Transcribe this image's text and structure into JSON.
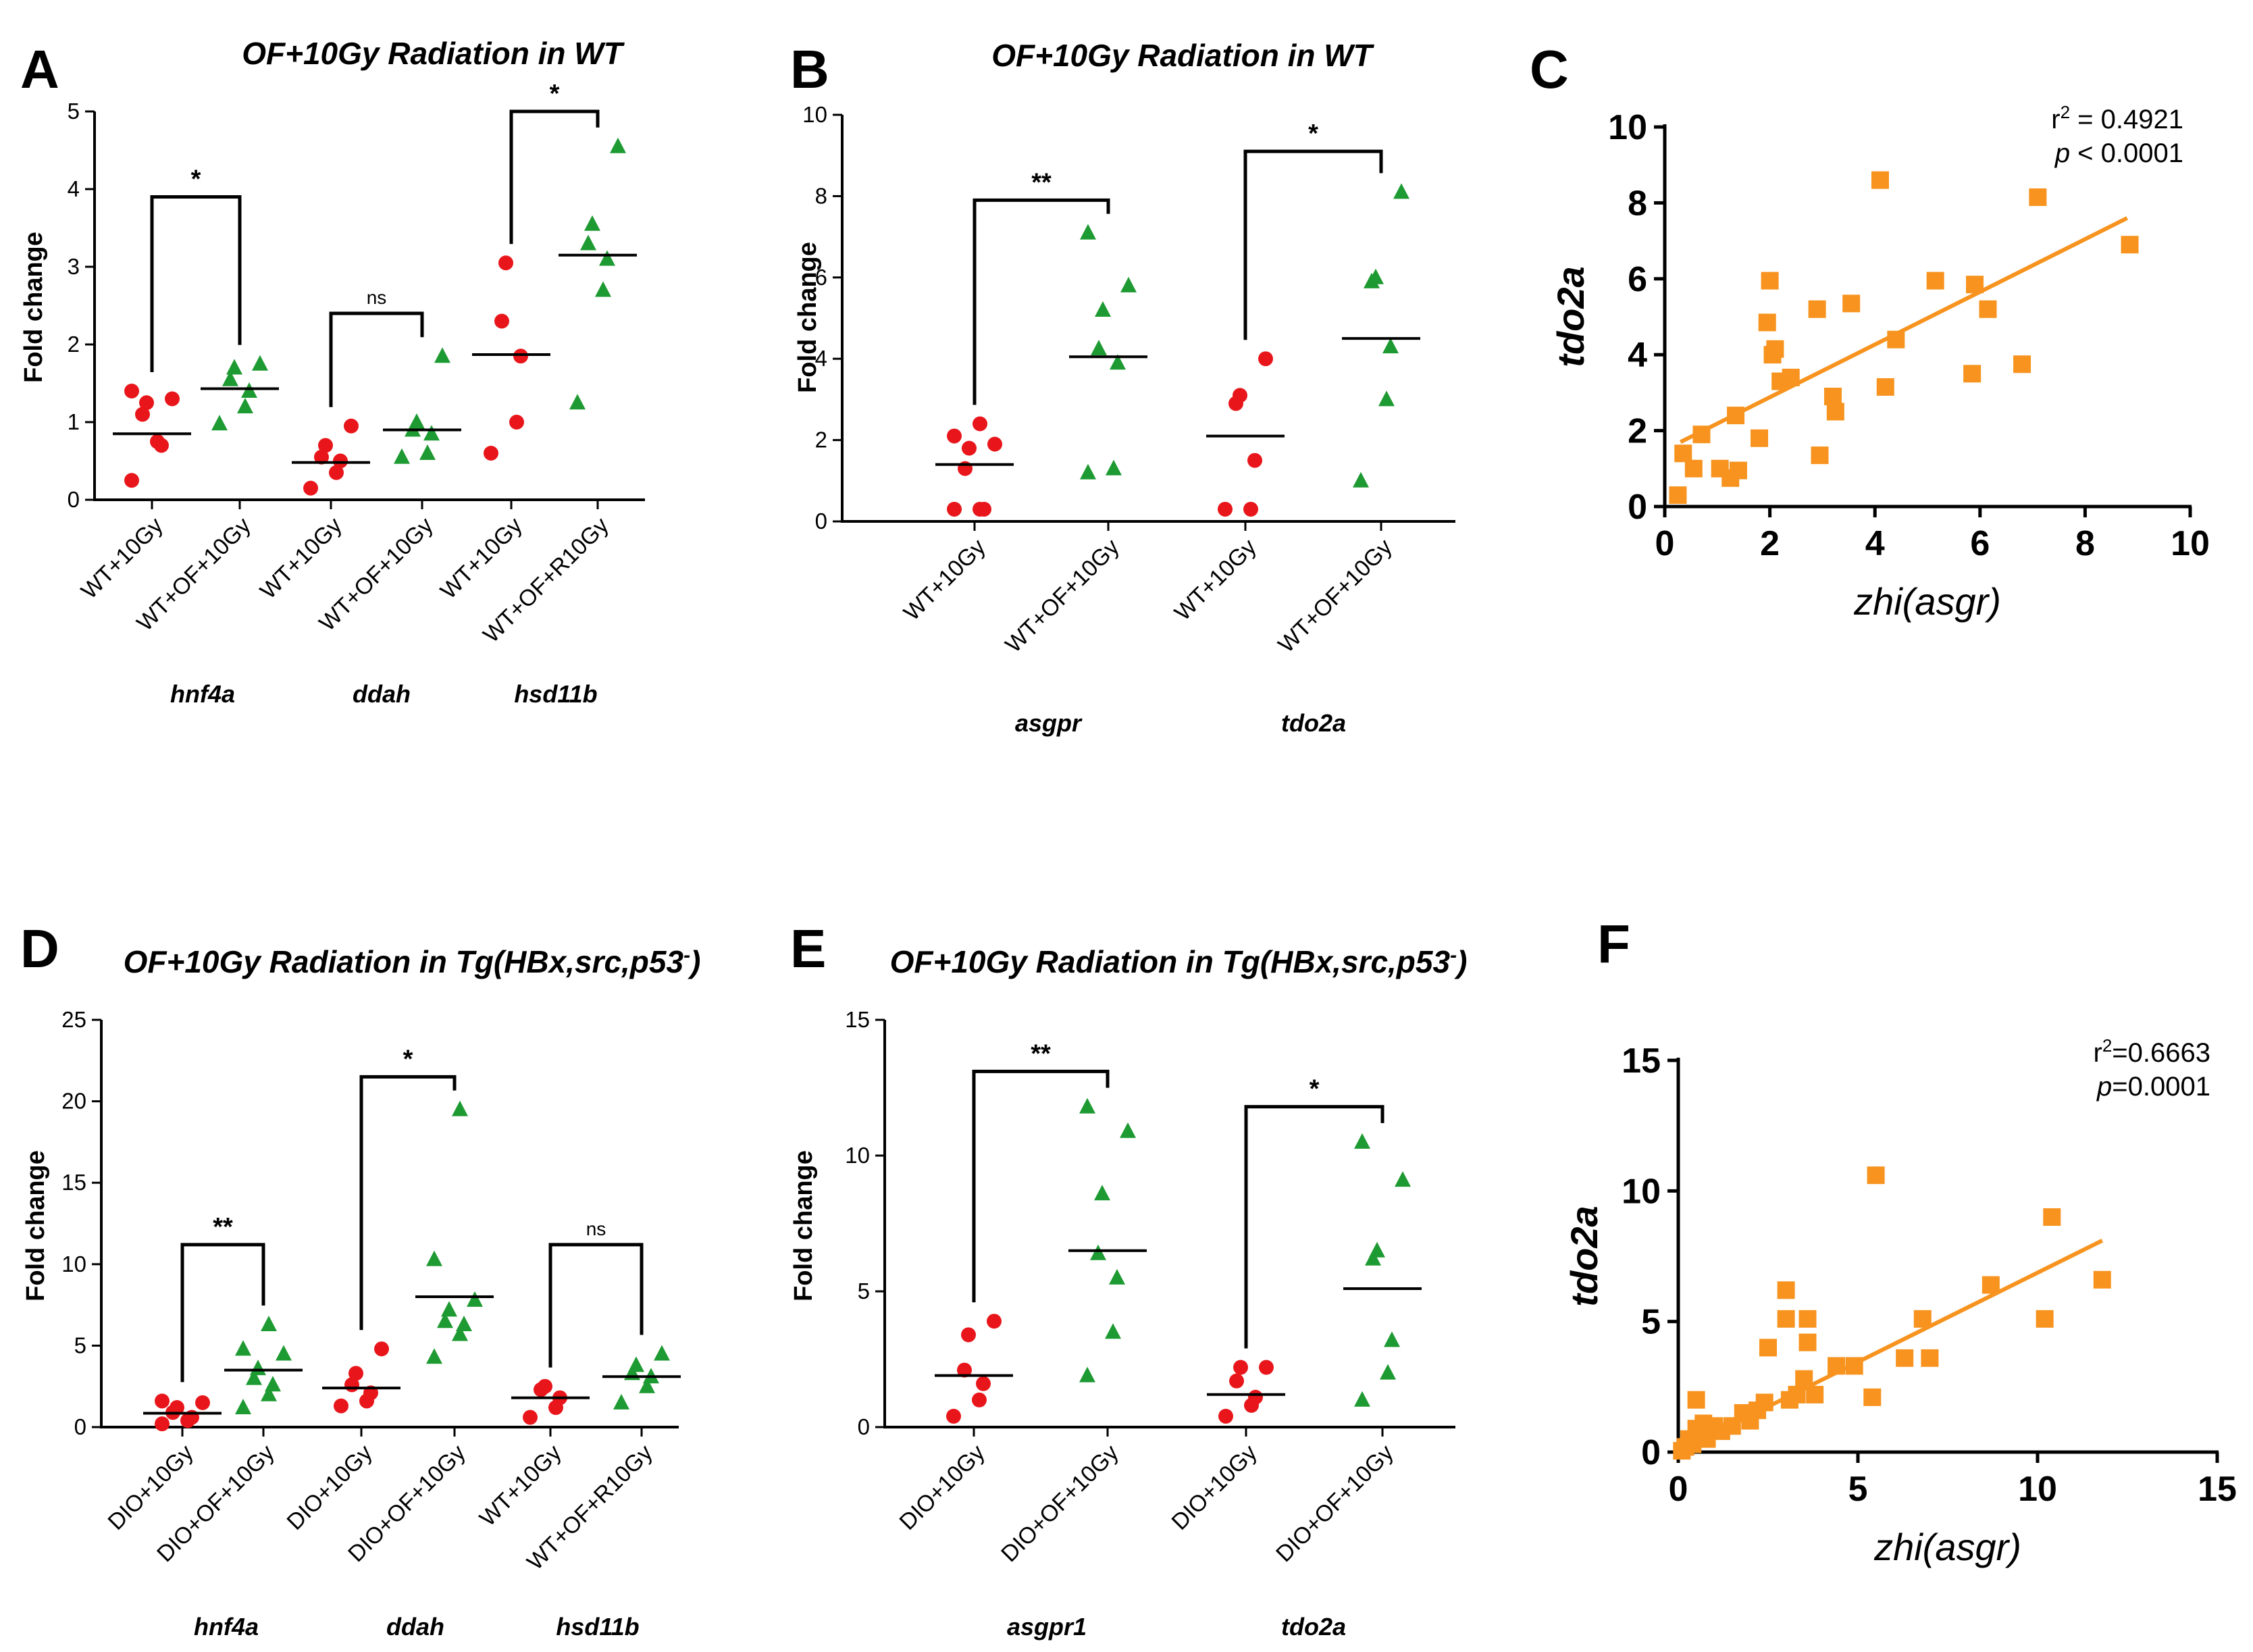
{
  "colors": {
    "wt": "#e8161b",
    "of": "#1e9a32",
    "scatter": "#f7931e",
    "fit": "#f7931e",
    "axis": "#000000"
  },
  "chart_data": [
    {
      "panel": "A",
      "type": "scatter",
      "title": "OF+10Gy Radiation in WT",
      "ylabel": "Fold change",
      "ylim": [
        0,
        5
      ],
      "yticks": [
        0,
        1,
        2,
        3,
        4,
        5
      ],
      "groups": [
        {
          "label": "WT+10Gy",
          "gene": "hnf4a",
          "marker": "circle",
          "color": "#e8161b",
          "mean": 0.85,
          "values": [
            0.25,
            0.75,
            0.7,
            1.1,
            1.25,
            1.3,
            1.4
          ]
        },
        {
          "label": "WT+OF+10Gy",
          "marker": "triangle",
          "color": "#1e9a32",
          "mean": 1.43,
          "values": [
            0.98,
            1.2,
            1.4,
            1.55,
            1.7,
            1.75
          ]
        },
        {
          "label": "WT+10Gy",
          "gene": "ddah",
          "marker": "circle",
          "color": "#e8161b",
          "mean": 0.48,
          "values": [
            0.15,
            0.35,
            0.5,
            0.55,
            0.7,
            0.95
          ]
        },
        {
          "label": "WT+OF+10Gy",
          "marker": "triangle",
          "color": "#1e9a32",
          "mean": 0.9,
          "values": [
            0.55,
            0.6,
            0.85,
            0.9,
            1.0,
            1.85
          ]
        },
        {
          "label": "WT+10Gy",
          "gene": "hsd11b",
          "marker": "circle",
          "color": "#e8161b",
          "mean": 1.87,
          "values": [
            0.6,
            1.0,
            1.85,
            2.3,
            3.05
          ]
        },
        {
          "label": "WT+OF+R10Gy",
          "marker": "triangle",
          "color": "#1e9a32",
          "mean": 3.15,
          "values": [
            1.25,
            2.7,
            3.1,
            3.3,
            3.55,
            4.55
          ]
        }
      ],
      "sig": [
        {
          "from": 0,
          "to": 1,
          "label": "*",
          "height": 3.9
        },
        {
          "from": 2,
          "to": 3,
          "label": "ns",
          "height": 2.4
        },
        {
          "from": 4,
          "to": 5,
          "label": "*",
          "height": 5.0
        }
      ]
    },
    {
      "panel": "B",
      "type": "scatter",
      "title": "OF+10Gy Radiation in WT",
      "ylabel": "Fold change",
      "ylim": [
        0,
        10
      ],
      "yticks": [
        0,
        2,
        4,
        6,
        8,
        10
      ],
      "groups": [
        {
          "label": "WT+10Gy",
          "gene": "asgpr",
          "marker": "circle",
          "color": "#e8161b",
          "mean": 1.4,
          "values": [
            0.3,
            0.3,
            0.3,
            1.3,
            1.8,
            1.9,
            2.1,
            2.4
          ]
        },
        {
          "label": "WT+OF+10Gy",
          "marker": "triangle",
          "color": "#1e9a32",
          "mean": 4.05,
          "values": [
            1.2,
            1.3,
            3.9,
            4.25,
            5.2,
            5.8,
            7.1
          ]
        },
        {
          "label": "WT+10Gy",
          "gene": "tdo2a",
          "marker": "circle",
          "color": "#e8161b",
          "mean": 2.1,
          "values": [
            0.3,
            0.3,
            1.5,
            2.9,
            3.1,
            4.0
          ]
        },
        {
          "label": "WT+OF+10Gy",
          "marker": "triangle",
          "color": "#1e9a32",
          "mean": 4.5,
          "values": [
            1.0,
            3.0,
            4.3,
            5.9,
            6.0,
            8.1
          ]
        }
      ],
      "sig": [
        {
          "from": 0,
          "to": 1,
          "label": "**",
          "height": 7.9
        },
        {
          "from": 2,
          "to": 3,
          "label": "*",
          "height": 9.1
        }
      ]
    },
    {
      "panel": "C",
      "type": "scatter",
      "xlabel": "zhi(asgr)",
      "ylabel": "tdo2a",
      "xlim": [
        0,
        10
      ],
      "ylim": [
        0,
        10
      ],
      "xticks": [
        0,
        2,
        4,
        6,
        8,
        10
      ],
      "yticks": [
        0,
        2,
        4,
        6,
        8,
        10
      ],
      "stats": {
        "r2": "r² = 0.4921",
        "r2_label": "r",
        "r2_value": " = 0.4921",
        "p_label": "p",
        "p_value": " < 0.0001"
      },
      "fit": {
        "x": [
          0.3,
          8.8
        ],
        "y": [
          1.7,
          7.6
        ]
      },
      "points": [
        [
          0.25,
          0.3
        ],
        [
          0.35,
          1.4
        ],
        [
          0.55,
          1.0
        ],
        [
          0.7,
          1.9
        ],
        [
          1.05,
          1.0
        ],
        [
          1.25,
          0.75
        ],
        [
          1.4,
          0.95
        ],
        [
          1.35,
          2.4
        ],
        [
          1.8,
          1.8
        ],
        [
          1.95,
          4.85
        ],
        [
          2.0,
          5.95
        ],
        [
          2.05,
          4.0
        ],
        [
          2.1,
          4.15
        ],
        [
          2.2,
          3.3
        ],
        [
          2.4,
          3.4
        ],
        [
          2.9,
          5.2
        ],
        [
          2.95,
          1.35
        ],
        [
          3.2,
          2.9
        ],
        [
          3.25,
          2.5
        ],
        [
          3.55,
          5.35
        ],
        [
          4.1,
          8.6
        ],
        [
          4.2,
          3.15
        ],
        [
          4.4,
          4.4
        ],
        [
          5.15,
          5.95
        ],
        [
          5.85,
          3.5
        ],
        [
          5.9,
          5.85
        ],
        [
          6.15,
          5.2
        ],
        [
          6.8,
          3.75
        ],
        [
          7.1,
          8.15
        ],
        [
          8.85,
          6.9
        ]
      ]
    },
    {
      "panel": "D",
      "type": "scatter",
      "title": "OF+10Gy Radiation in Tg(HBx,src,p53",
      "title_sup": "-",
      "title_end": ")",
      "ylabel": "Fold change",
      "ylim": [
        0,
        25
      ],
      "yticks": [
        0,
        5,
        10,
        15,
        20,
        25
      ],
      "groups": [
        {
          "label": "DIO+10Gy",
          "gene": "hnf4a",
          "marker": "circle",
          "color": "#e8161b",
          "mean": 0.85,
          "values": [
            0.2,
            0.4,
            0.6,
            0.9,
            1.2,
            1.5,
            1.6
          ]
        },
        {
          "label": "DIO+OF+10Gy",
          "marker": "triangle",
          "color": "#1e9a32",
          "mean": 3.5,
          "values": [
            1.2,
            2.0,
            2.6,
            3.0,
            3.6,
            4.5,
            4.8,
            6.3
          ]
        },
        {
          "label": "DIO+10Gy",
          "gene": "ddah",
          "marker": "circle",
          "color": "#e8161b",
          "mean": 2.4,
          "values": [
            1.3,
            1.6,
            2.1,
            2.6,
            3.3,
            4.8
          ]
        },
        {
          "label": "DIO+OF+10Gy",
          "marker": "triangle",
          "color": "#1e9a32",
          "mean": 8.0,
          "values": [
            4.3,
            5.7,
            6.3,
            6.5,
            7.2,
            7.8,
            10.3,
            19.5
          ]
        },
        {
          "label": "WT+10Gy",
          "gene": "hsd11b",
          "marker": "circle",
          "color": "#e8161b",
          "mean": 1.8,
          "values": [
            0.6,
            1.2,
            1.8,
            2.3,
            2.5
          ]
        },
        {
          "label": "WT+OF+R10Gy",
          "marker": "triangle",
          "color": "#1e9a32",
          "mean": 3.1,
          "values": [
            1.5,
            2.5,
            3.1,
            3.3,
            3.8,
            4.5
          ]
        }
      ],
      "sig": [
        {
          "from": 0,
          "to": 1,
          "label": "**",
          "height": 11.2
        },
        {
          "from": 2,
          "to": 3,
          "label": "*",
          "height": 21.5
        },
        {
          "from": 4,
          "to": 5,
          "label": "ns",
          "height": 11.2
        }
      ]
    },
    {
      "panel": "E",
      "type": "scatter",
      "title": "OF+10Gy Radiation in Tg(HBx,src,p53",
      "title_sup": "-",
      "title_end": ")",
      "ylabel": "Fold change",
      "ylim": [
        0,
        15
      ],
      "yticks": [
        0,
        5,
        10,
        15
      ],
      "groups": [
        {
          "label": "DIO+10Gy",
          "gene": "asgpr1",
          "marker": "circle",
          "color": "#e8161b",
          "mean": 1.9,
          "values": [
            0.4,
            1.0,
            1.6,
            2.1,
            3.4,
            3.9
          ]
        },
        {
          "label": "DIO+OF+10Gy",
          "marker": "triangle",
          "color": "#1e9a32",
          "mean": 6.5,
          "values": [
            1.9,
            3.5,
            5.5,
            6.4,
            8.6,
            10.9,
            11.8
          ]
        },
        {
          "label": "DIO+10Gy",
          "gene": "tdo2a",
          "marker": "circle",
          "color": "#e8161b",
          "mean": 1.2,
          "values": [
            0.4,
            0.8,
            1.1,
            1.7,
            2.2,
            2.2
          ]
        },
        {
          "label": "DIO+OF+10Gy",
          "marker": "triangle",
          "color": "#1e9a32",
          "mean": 5.1,
          "values": [
            1.0,
            2.0,
            3.2,
            6.2,
            6.5,
            9.1,
            10.5
          ]
        }
      ],
      "sig": [
        {
          "from": 0,
          "to": 1,
          "label": "**",
          "height": 13.1
        },
        {
          "from": 2,
          "to": 3,
          "label": "*",
          "height": 11.8
        }
      ]
    },
    {
      "panel": "F",
      "type": "scatter",
      "xlabel": "zhi(asgr)",
      "ylabel": "tdo2a",
      "xlim": [
        0,
        15
      ],
      "ylim": [
        0,
        15
      ],
      "xticks": [
        0,
        5,
        10,
        15
      ],
      "yticks": [
        0,
        5,
        10,
        15
      ],
      "stats": {
        "r2_label": "r",
        "r2_value": "=0.6663",
        "p_label": "p",
        "p_value": "=0.0001"
      },
      "fit": {
        "x": [
          0.1,
          11.8
        ],
        "y": [
          0.1,
          8.1
        ]
      },
      "points": [
        [
          0.1,
          0.05
        ],
        [
          0.2,
          0.2
        ],
        [
          0.3,
          0.5
        ],
        [
          0.4,
          0.3
        ],
        [
          0.5,
          0.9
        ],
        [
          0.5,
          2.0
        ],
        [
          0.6,
          0.6
        ],
        [
          0.7,
          1.1
        ],
        [
          0.8,
          0.5
        ],
        [
          1.0,
          1.0
        ],
        [
          1.2,
          0.8
        ],
        [
          1.5,
          1.0
        ],
        [
          1.8,
          1.5
        ],
        [
          2.0,
          1.2
        ],
        [
          2.2,
          1.6
        ],
        [
          2.4,
          1.9
        ],
        [
          2.5,
          4.0
        ],
        [
          3.0,
          5.1
        ],
        [
          3.0,
          6.2
        ],
        [
          3.1,
          2.0
        ],
        [
          3.3,
          2.2
        ],
        [
          3.5,
          2.8
        ],
        [
          3.6,
          4.2
        ],
        [
          3.6,
          5.1
        ],
        [
          3.8,
          2.2
        ],
        [
          4.4,
          3.3
        ],
        [
          4.9,
          3.3
        ],
        [
          5.4,
          2.1
        ],
        [
          5.5,
          10.6
        ],
        [
          6.3,
          3.6
        ],
        [
          6.8,
          5.1
        ],
        [
          7.0,
          3.6
        ],
        [
          8.7,
          6.4
        ],
        [
          10.2,
          5.1
        ],
        [
          10.4,
          9.0
        ],
        [
          11.8,
          6.6
        ]
      ]
    }
  ],
  "panels": [
    {
      "label": "A",
      "gene_labels": [
        "hnf4a",
        "ddah",
        "hsd11b"
      ]
    },
    {
      "label": "B",
      "gene_labels": [
        "asgpr",
        "tdo2a"
      ]
    },
    {
      "label": "C"
    },
    {
      "label": "D",
      "gene_labels": [
        "hnf4a",
        "ddah",
        "hsd11b"
      ]
    },
    {
      "label": "E",
      "gene_labels": [
        "asgpr1",
        "tdo2a"
      ]
    },
    {
      "label": "F"
    }
  ]
}
